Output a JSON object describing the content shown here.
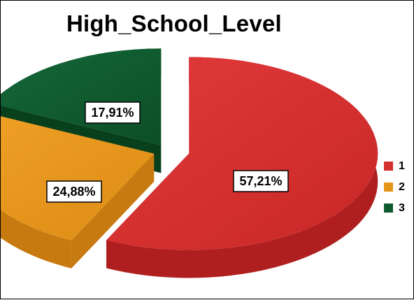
{
  "chart_data": {
    "type": "pie",
    "title": "High_School_Level",
    "categories": [
      "1",
      "2",
      "3"
    ],
    "values": [
      57.21,
      24.88,
      17.91
    ],
    "labels": [
      "57,21%",
      "24,88%",
      "17,91%"
    ],
    "colors": [
      "#D42F2F",
      "#E6951A",
      "#0F5A2C"
    ],
    "exploded": true,
    "legend": "right"
  }
}
